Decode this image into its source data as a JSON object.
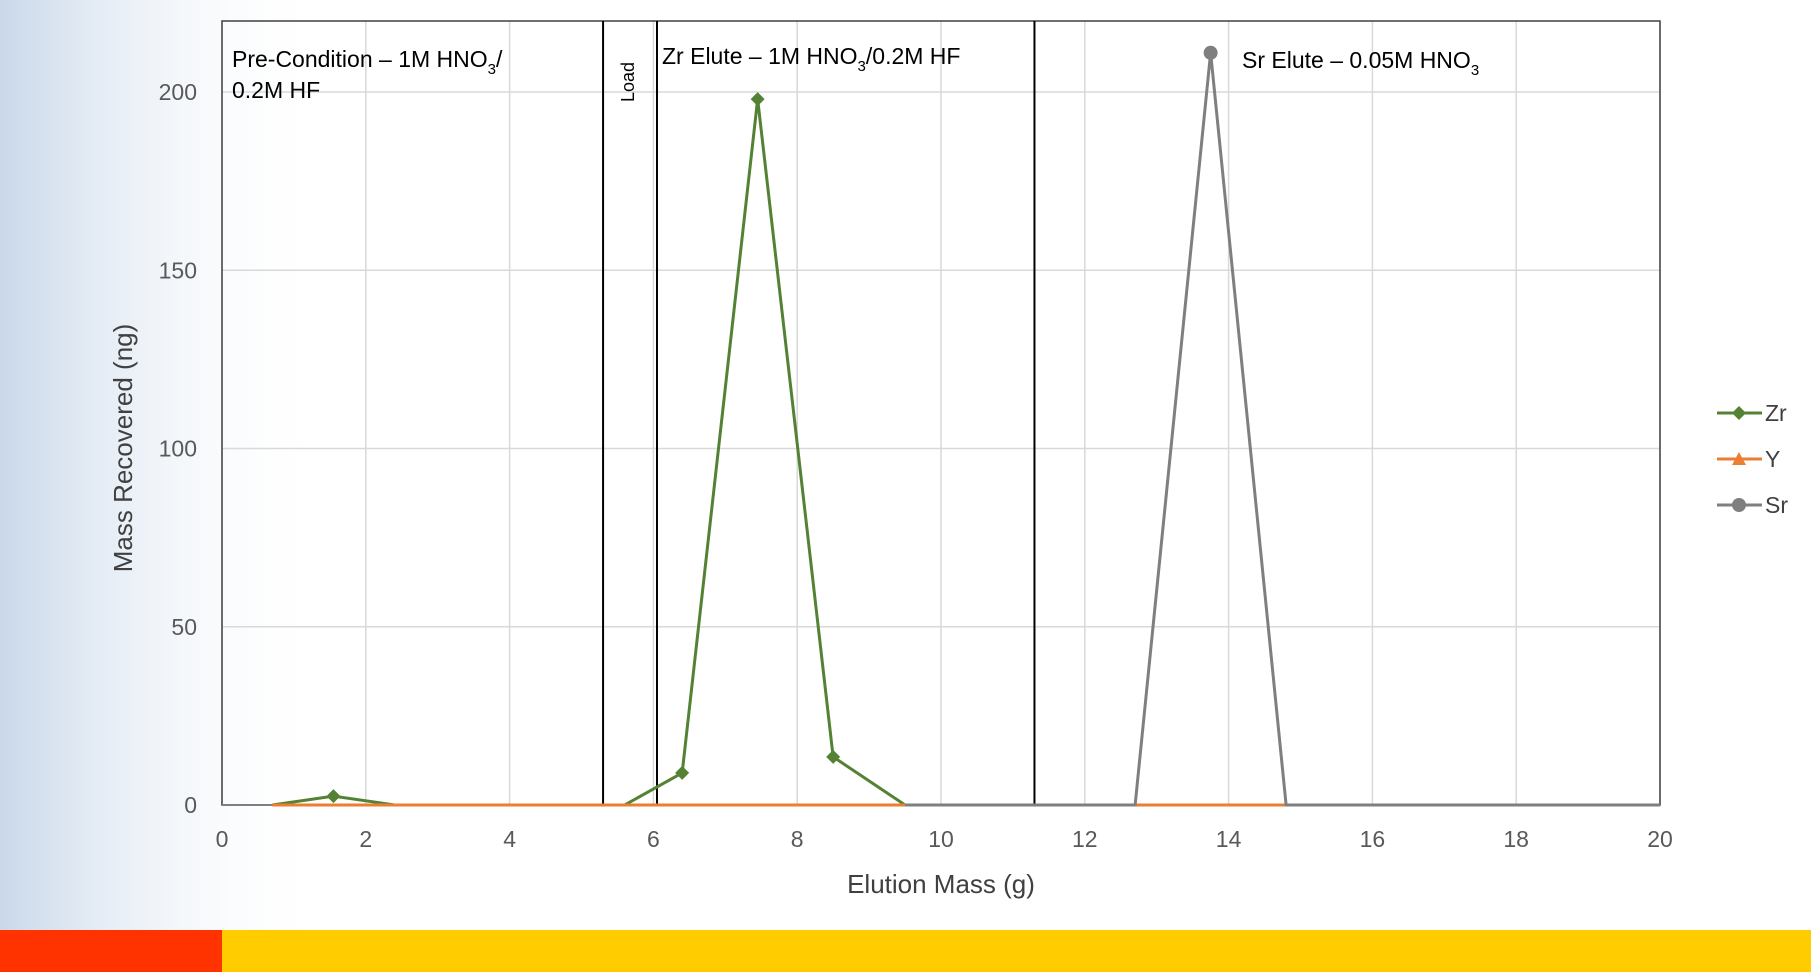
{
  "chart_data": {
    "type": "line",
    "xlabel": "Elution Mass (g)",
    "ylabel": "Mass Recovered (ng)",
    "xlim": [
      0,
      20
    ],
    "xticks": [
      0,
      2,
      4,
      6,
      8,
      10,
      12,
      14,
      16,
      18,
      20
    ],
    "ylim": [
      0,
      220
    ],
    "yticks": [
      0,
      50,
      100,
      150,
      200
    ],
    "grid": true,
    "dividers": [
      5.3,
      6.05,
      11.3
    ],
    "annotations": [
      {
        "parts": [
          "Pre-Condition – 1M HNO",
          "3",
          "/",
          "0.2M HF"
        ]
      },
      {
        "parts": [
          "Load"
        ]
      },
      {
        "parts": [
          "Zr Elute – 1M HNO",
          "3",
          "/0.2M HF"
        ]
      },
      {
        "parts": [
          "Sr Elute – 0.05M HNO",
          "3"
        ]
      }
    ],
    "series": [
      {
        "name": "Zr",
        "color": "#548235",
        "marker": "diamond",
        "x": [
          0.7,
          1.55,
          2.4,
          5.6,
          6.4,
          7.45,
          8.5,
          9.5,
          20
        ],
        "values": [
          0,
          2.5,
          0,
          0,
          9,
          198,
          13.5,
          0,
          0
        ]
      },
      {
        "name": "Y",
        "color": "#ed7d31",
        "marker": "triangle",
        "x": [
          0.7,
          20
        ],
        "values": [
          0,
          0
        ]
      },
      {
        "name": "Sr",
        "color": "#7f7f7f",
        "marker": "circle",
        "x": [
          9.5,
          12.7,
          13.75,
          14.8,
          20
        ],
        "values": [
          0,
          0,
          211,
          0,
          0
        ]
      }
    ]
  }
}
